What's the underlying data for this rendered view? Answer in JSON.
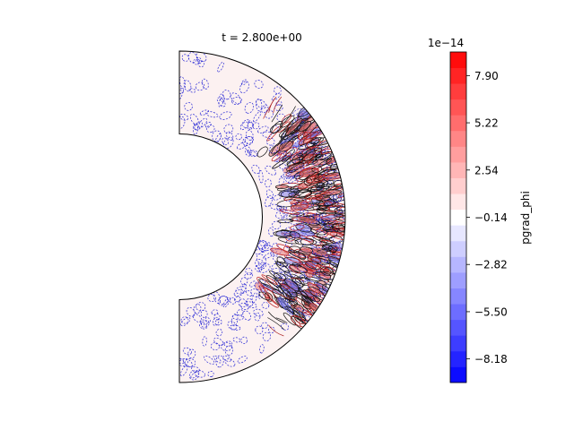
{
  "chart_data": {
    "type": "heatmap",
    "title": "t = 2.800e+00",
    "geometry": "spherical-shell-meridional-half",
    "r_inner": 0.5,
    "r_outer": 1.0,
    "colorbar": {
      "label": "pgrad_phi",
      "offset_text": "1e−14",
      "colormap": "bwr",
      "vmin": -9.52,
      "vmax": 9.24,
      "levels": 21,
      "ticks": [
        {
          "value": 7.9,
          "label": "7.90"
        },
        {
          "value": 5.22,
          "label": "5.22"
        },
        {
          "value": 2.54,
          "label": "2.54"
        },
        {
          "value": -0.14,
          "label": "−0.14"
        },
        {
          "value": -2.82,
          "label": "−2.82"
        },
        {
          "value": -5.5,
          "label": "−5.50"
        },
        {
          "value": -8.18,
          "label": "−8.18"
        }
      ]
    }
  }
}
